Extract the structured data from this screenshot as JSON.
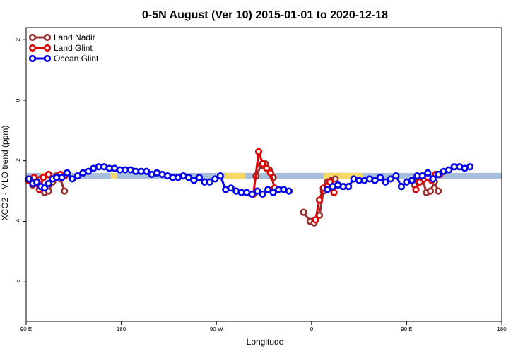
{
  "chart_data": {
    "type": "line",
    "title": "0-5N August (Ver 10)   2015-01-01 to 2020-12-18",
    "xlabel": "Longitude",
    "ylabel": "XCO2 - MLO trend (ppm)",
    "xlim": [
      90,
      450
    ],
    "ylim": [
      -7.3,
      2.4
    ],
    "x_ticks": [
      {
        "value": 90,
        "label": "90 E"
      },
      {
        "value": 162,
        "label": "180"
      },
      {
        "value": 234,
        "label": "90 W"
      },
      {
        "value": 306,
        "label": "0"
      },
      {
        "value": 378,
        "label": "90 E"
      },
      {
        "value": 450,
        "label": "180"
      }
    ],
    "y_ticks": [
      2,
      0,
      -2,
      -4,
      -6
    ],
    "grid": false,
    "legend_position": "top-left",
    "background_band": {
      "y_range": [
        -2.6,
        -2.4
      ],
      "color": "#a7bedd",
      "highlight_color": "#f5d86a",
      "highlight_ranges": [
        [
          101,
          106
        ],
        [
          154,
          159
        ],
        [
          240,
          256
        ],
        [
          315,
          345
        ],
        [
          385,
          395
        ]
      ]
    },
    "series": [
      {
        "name": "Land Nadir",
        "color": "#9b2d2d",
        "points": [
          [
            92,
            -2.6
          ],
          [
            95,
            -2.8
          ],
          [
            98,
            -2.75
          ],
          [
            101,
            -2.6
          ],
          [
            104,
            -3.05
          ],
          [
            107,
            -3.0
          ],
          [
            110,
            -2.7
          ],
          [
            113,
            -2.5
          ],
          [
            116,
            -2.6
          ],
          [
            119,
            -3.0
          ],
          [
            264,
            -2.5
          ],
          [
            268,
            -2.15
          ],
          [
            271,
            -2.1
          ],
          [
            274,
            -2.3
          ],
          [
            277,
            -2.55
          ],
          [
            300,
            -3.7
          ],
          [
            305,
            -4.0
          ],
          [
            308,
            -4.05
          ],
          [
            312,
            -3.8
          ],
          [
            315,
            -3.0
          ],
          [
            318,
            -2.7
          ],
          [
            321,
            -2.65
          ],
          [
            324,
            -2.6
          ],
          [
            384,
            -2.8
          ],
          [
            387,
            -2.7
          ],
          [
            390,
            -2.6
          ],
          [
            393,
            -3.05
          ],
          [
            396,
            -3.0
          ],
          [
            399,
            -2.7
          ],
          [
            402,
            -3.0
          ]
        ]
      },
      {
        "name": "Land Glint",
        "color": "#e00000",
        "points": [
          [
            92,
            -2.65
          ],
          [
            96,
            -2.55
          ],
          [
            100,
            -2.95
          ],
          [
            103,
            -2.55
          ],
          [
            107,
            -2.45
          ],
          [
            110,
            -2.6
          ],
          [
            113,
            -2.55
          ],
          [
            116,
            -2.45
          ],
          [
            119,
            -2.5
          ],
          [
            262,
            -3.1
          ],
          [
            266,
            -1.7
          ],
          [
            269,
            -2.1
          ],
          [
            272,
            -2.25
          ],
          [
            275,
            -2.4
          ],
          [
            278,
            -2.9
          ],
          [
            309,
            -3.95
          ],
          [
            312,
            -3.3
          ],
          [
            315,
            -2.9
          ],
          [
            318,
            -2.85
          ],
          [
            320,
            -2.7
          ],
          [
            323,
            -3.05
          ],
          [
            385,
            -2.95
          ],
          [
            388,
            -2.7
          ],
          [
            391,
            -2.6
          ],
          [
            394,
            -2.55
          ],
          [
            397,
            -2.65
          ],
          [
            400,
            -2.45
          ],
          [
            403,
            -2.45
          ]
        ]
      },
      {
        "name": "Ocean Glint",
        "color": "#0000ee",
        "points": [
          [
            92,
            -2.6
          ],
          [
            95,
            -2.75
          ],
          [
            98,
            -2.7
          ],
          [
            101,
            -2.85
          ],
          [
            104,
            -2.9
          ],
          [
            107,
            -2.75
          ],
          [
            110,
            -2.6
          ],
          [
            113,
            -2.55
          ],
          [
            117,
            -2.55
          ],
          [
            121,
            -2.4
          ],
          [
            125,
            -2.6
          ],
          [
            129,
            -2.5
          ],
          [
            133,
            -2.4
          ],
          [
            137,
            -2.35
          ],
          [
            141,
            -2.25
          ],
          [
            145,
            -2.2
          ],
          [
            149,
            -2.2
          ],
          [
            153,
            -2.25
          ],
          [
            157,
            -2.25
          ],
          [
            161,
            -2.3
          ],
          [
            165,
            -2.3
          ],
          [
            169,
            -2.3
          ],
          [
            173,
            -2.35
          ],
          [
            177,
            -2.35
          ],
          [
            181,
            -2.35
          ],
          [
            185,
            -2.45
          ],
          [
            189,
            -2.4
          ],
          [
            193,
            -2.45
          ],
          [
            197,
            -2.5
          ],
          [
            201,
            -2.55
          ],
          [
            205,
            -2.55
          ],
          [
            209,
            -2.5
          ],
          [
            213,
            -2.55
          ],
          [
            217,
            -2.65
          ],
          [
            221,
            -2.55
          ],
          [
            225,
            -2.7
          ],
          [
            229,
            -2.7
          ],
          [
            233,
            -2.6
          ],
          [
            237,
            -2.5
          ],
          [
            241,
            -2.95
          ],
          [
            245,
            -2.9
          ],
          [
            249,
            -3.0
          ],
          [
            253,
            -3.05
          ],
          [
            257,
            -3.05
          ],
          [
            261,
            -3.1
          ],
          [
            265,
            -3.0
          ],
          [
            269,
            -3.1
          ],
          [
            273,
            -2.95
          ],
          [
            277,
            -3.05
          ],
          [
            281,
            -2.95
          ],
          [
            285,
            -2.95
          ],
          [
            289,
            -3.0
          ],
          [
            318,
            -2.95
          ],
          [
            322,
            -2.85
          ],
          [
            326,
            -2.8
          ],
          [
            330,
            -2.85
          ],
          [
            334,
            -2.85
          ],
          [
            338,
            -2.6
          ],
          [
            342,
            -2.65
          ],
          [
            346,
            -2.65
          ],
          [
            350,
            -2.6
          ],
          [
            354,
            -2.65
          ],
          [
            358,
            -2.55
          ],
          [
            362,
            -2.7
          ],
          [
            366,
            -2.6
          ],
          [
            370,
            -2.5
          ],
          [
            374,
            -2.85
          ],
          [
            378,
            -2.7
          ],
          [
            382,
            -2.65
          ],
          [
            386,
            -2.5
          ],
          [
            390,
            -2.5
          ],
          [
            394,
            -2.4
          ],
          [
            398,
            -2.6
          ],
          [
            402,
            -2.45
          ],
          [
            406,
            -2.35
          ],
          [
            410,
            -2.3
          ],
          [
            414,
            -2.2
          ],
          [
            418,
            -2.2
          ],
          [
            422,
            -2.25
          ],
          [
            426,
            -2.2
          ]
        ]
      }
    ]
  }
}
